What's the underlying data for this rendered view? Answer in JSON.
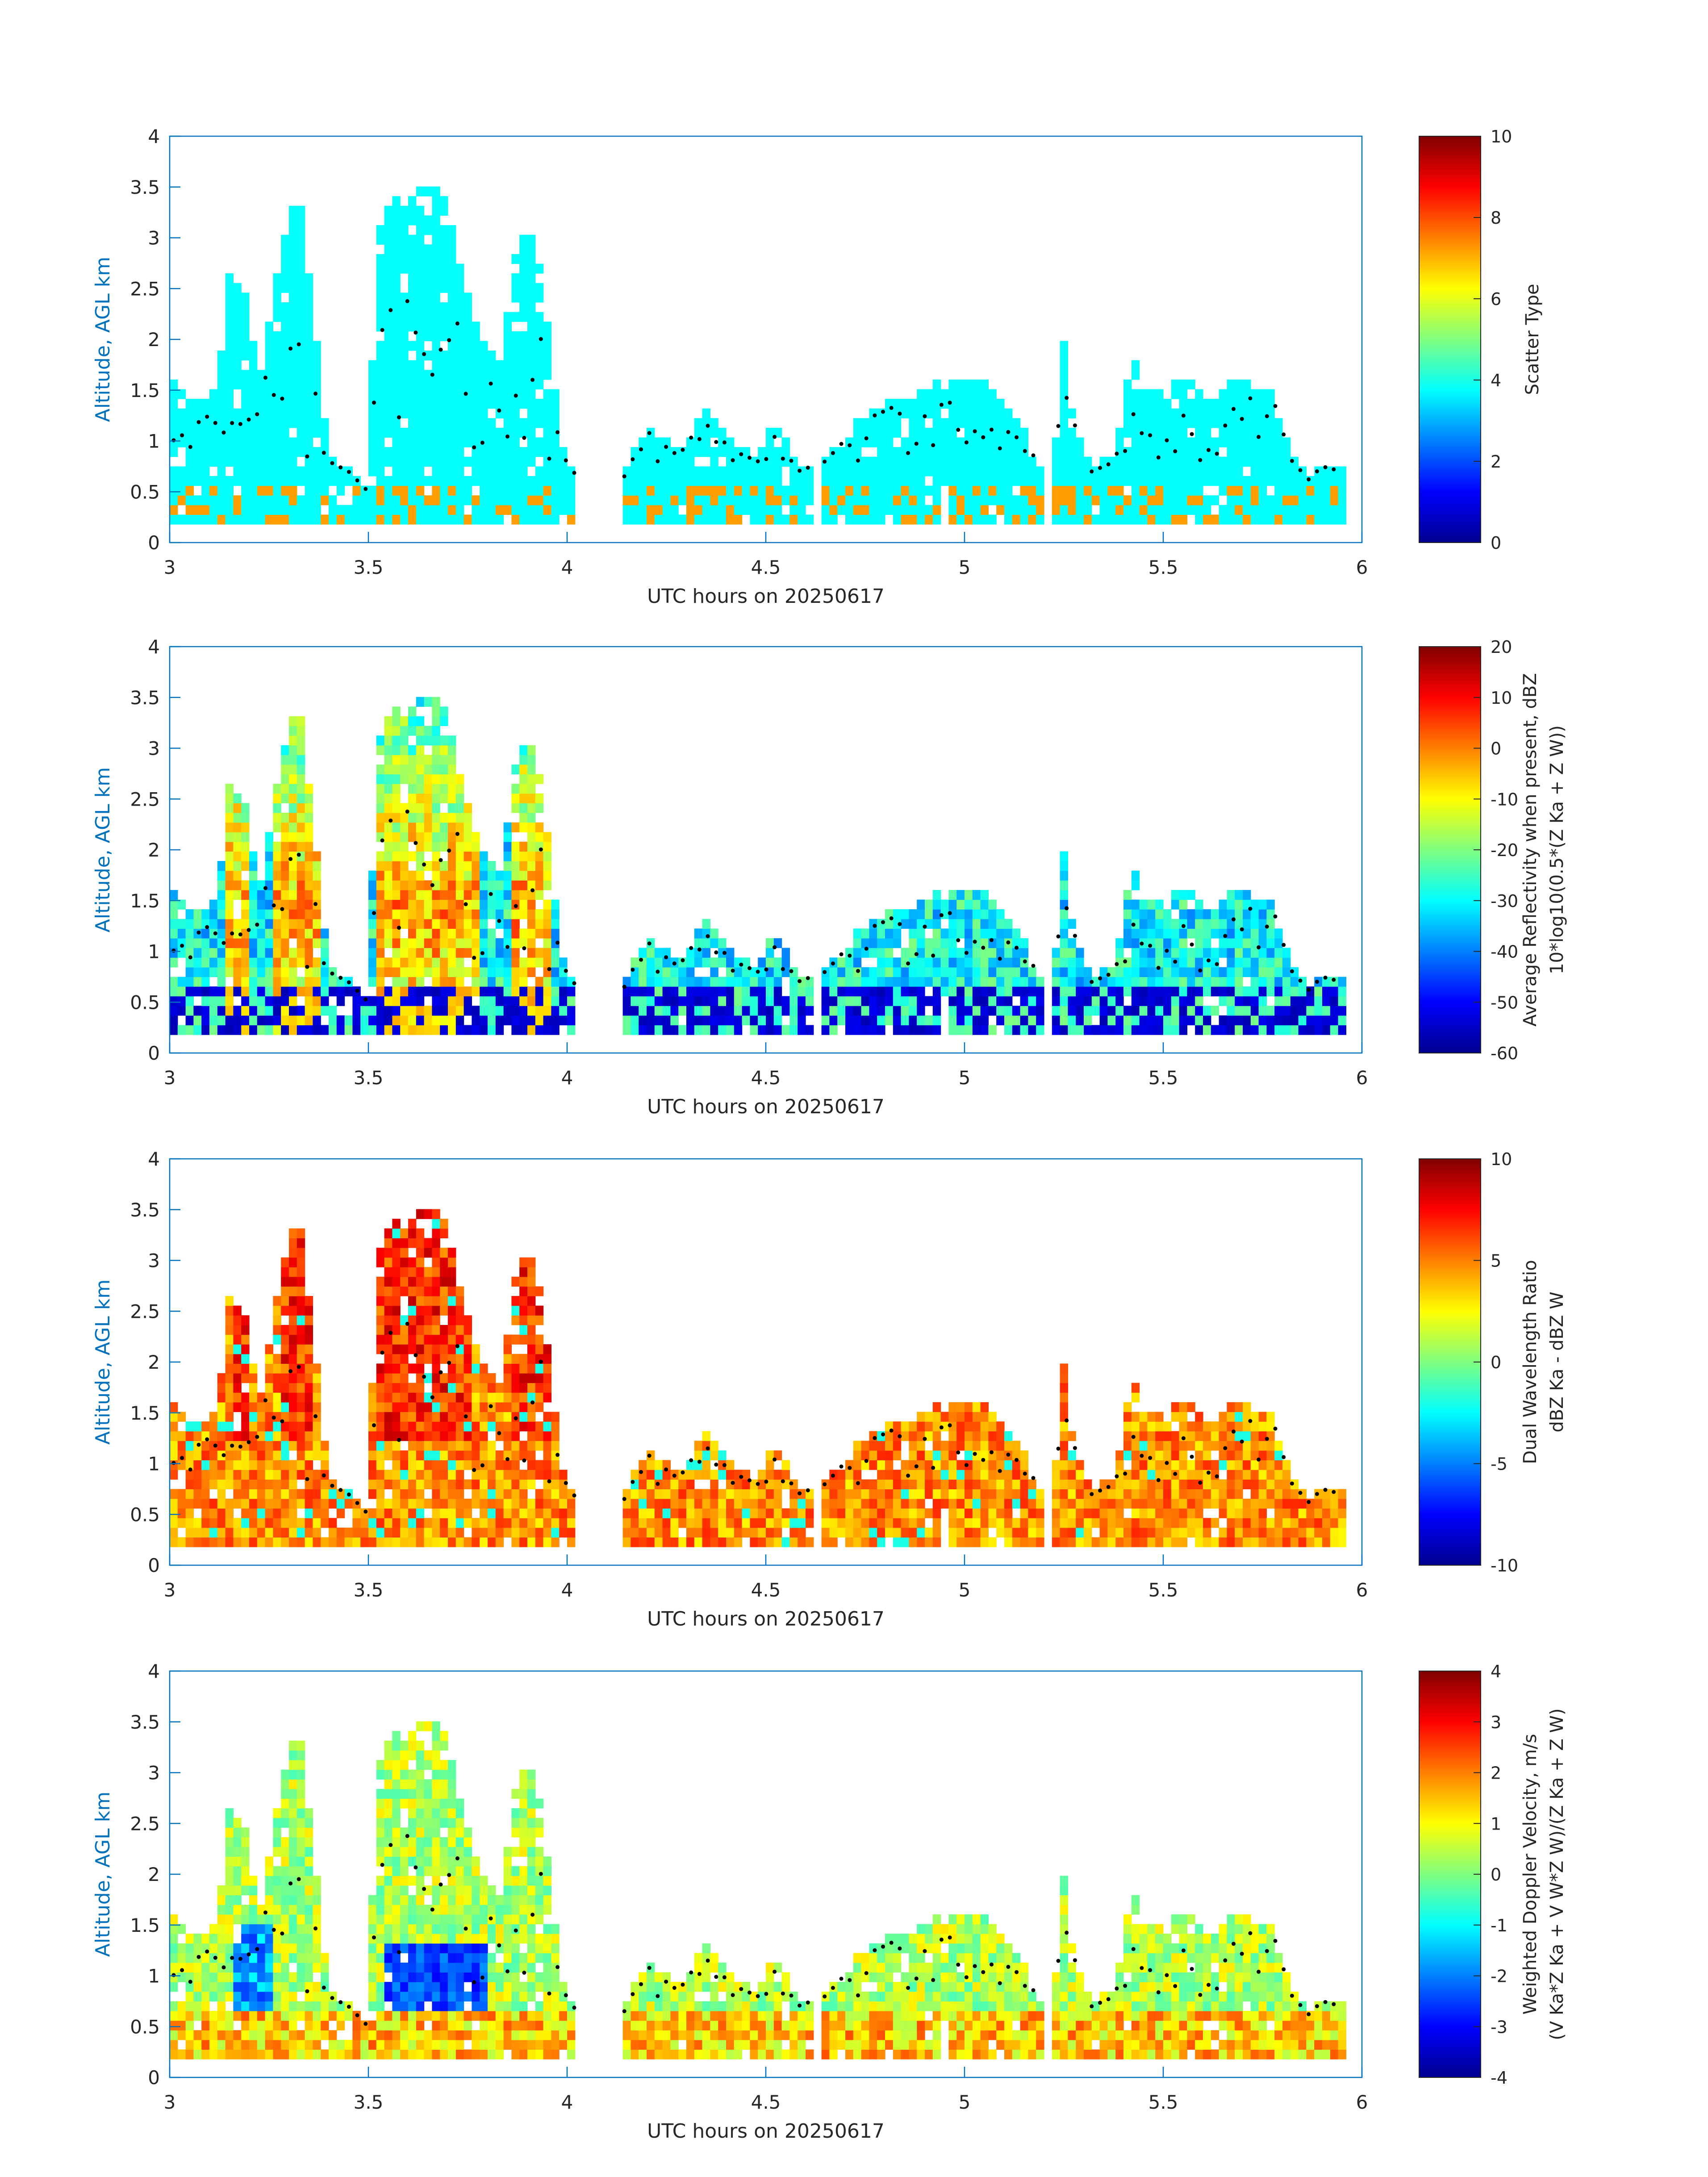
{
  "figure": {
    "x_label": "UTC hours on 20250617",
    "y_label": "Altitude, AGL km",
    "x_ticks": [
      "3",
      "3.5",
      "4",
      "4.5",
      "5",
      "5.5",
      "6"
    ],
    "y_ticks": [
      "0",
      "0.5",
      "1",
      "1.5",
      "2",
      "2.5",
      "3",
      "3.5",
      "4"
    ],
    "axis_color": "#0072BD",
    "text_color": "#262626"
  },
  "chart_data": [
    {
      "type": "heatmap",
      "xlim": [
        3,
        6
      ],
      "ylim": [
        0,
        4
      ],
      "colorbar": {
        "label_lines": [
          "Scatter Type"
        ],
        "range": [
          0,
          10
        ],
        "ticks": [
          "0",
          "2",
          "4",
          "6",
          "8",
          "10"
        ],
        "colormap": "jet"
      }
    },
    {
      "type": "heatmap",
      "xlim": [
        3,
        6
      ],
      "ylim": [
        0,
        4
      ],
      "colorbar": {
        "label_lines": [
          "Average Reflectivity when present, dBZ",
          "10*log10(0.5*(Z Ka + Z W))"
        ],
        "range": [
          -60,
          20
        ],
        "ticks": [
          "-60",
          "-50",
          "-40",
          "-30",
          "-20",
          "-10",
          "0",
          "10",
          "20"
        ],
        "colormap": "jet"
      }
    },
    {
      "type": "heatmap",
      "xlim": [
        3,
        6
      ],
      "ylim": [
        0,
        4
      ],
      "colorbar": {
        "label_lines": [
          "Dual Wavelength Ratio",
          "dBZ Ka - dBZ W"
        ],
        "range": [
          -10,
          10
        ],
        "ticks": [
          "-10",
          "-5",
          "0",
          "5",
          "10"
        ],
        "colormap": "jet"
      }
    },
    {
      "type": "heatmap",
      "xlim": [
        3,
        6
      ],
      "ylim": [
        0,
        4
      ],
      "colorbar": {
        "label_lines": [
          "Weighted Doppler Velocity, m/s",
          "(V Ka*Z Ka + V W*Z W)/(Z Ka + Z W)"
        ],
        "range": [
          -4,
          4
        ],
        "ticks": [
          "-4",
          "-3",
          "-2",
          "-1",
          "0",
          "1",
          "2",
          "3",
          "4"
        ],
        "colormap": "jet"
      }
    }
  ]
}
